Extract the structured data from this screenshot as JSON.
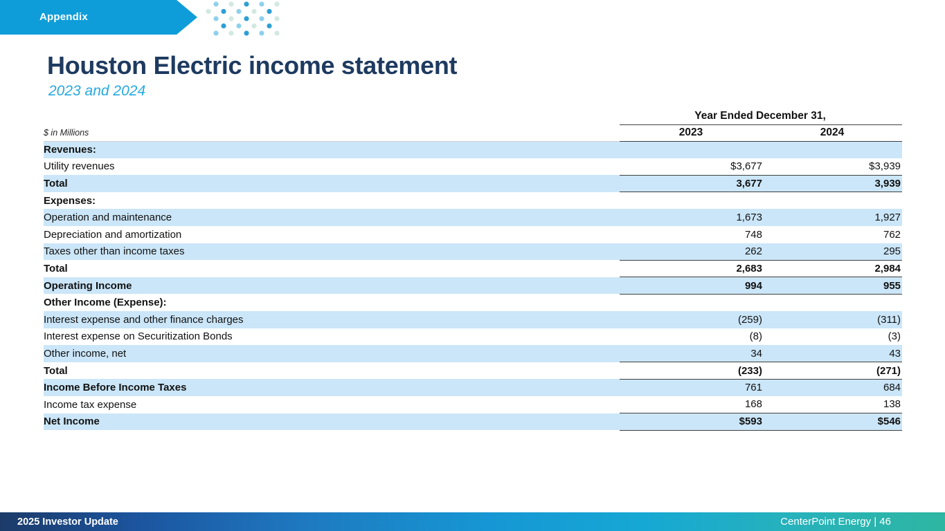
{
  "slide": {
    "tab_label": "Appendix",
    "title": "Houston Electric income statement",
    "subtitle": "2023 and 2024",
    "footer_left": "2025 Investor Update",
    "footer_right": "CenterPoint Energy | 46"
  },
  "table": {
    "units_label": "$ in Millions",
    "period_header": "Year Ended December 31,",
    "columns": [
      "2023",
      "2024"
    ],
    "rows": [
      {
        "label": "Revenues:",
        "v2023": "",
        "v2024": "",
        "label_bold": true,
        "value_bold": false,
        "indent": 0,
        "shaded": true,
        "line_below": false
      },
      {
        "label": "Utility revenues",
        "v2023": "$3,677",
        "v2024": "$3,939",
        "label_bold": false,
        "value_bold": false,
        "indent": 1,
        "shaded": false,
        "line_below": true
      },
      {
        "label": "Total",
        "v2023": "3,677",
        "v2024": "3,939",
        "label_bold": true,
        "value_bold": true,
        "indent": 2,
        "shaded": true,
        "line_below": true
      },
      {
        "label": "Expenses:",
        "v2023": "",
        "v2024": "",
        "label_bold": true,
        "value_bold": false,
        "indent": 0,
        "shaded": false,
        "line_below": false
      },
      {
        "label": "Operation and maintenance",
        "v2023": "1,673",
        "v2024": "1,927",
        "label_bold": false,
        "value_bold": false,
        "indent": 1,
        "shaded": true,
        "line_below": false
      },
      {
        "label": "Depreciation and amortization",
        "v2023": "748",
        "v2024": "762",
        "label_bold": false,
        "value_bold": false,
        "indent": 1,
        "shaded": false,
        "line_below": false
      },
      {
        "label": "Taxes other than income taxes",
        "v2023": "262",
        "v2024": "295",
        "label_bold": false,
        "value_bold": false,
        "indent": 1,
        "shaded": true,
        "line_below": true
      },
      {
        "label": "Total",
        "v2023": "2,683",
        "v2024": "2,984",
        "label_bold": true,
        "value_bold": true,
        "indent": 2,
        "shaded": false,
        "line_below": true
      },
      {
        "label": "Operating Income",
        "v2023": "994",
        "v2024": "955",
        "label_bold": true,
        "value_bold": true,
        "indent": 0,
        "shaded": true,
        "line_below": true
      },
      {
        "label": "Other Income (Expense):",
        "v2023": "",
        "v2024": "",
        "label_bold": true,
        "value_bold": false,
        "indent": 0,
        "shaded": false,
        "line_below": false
      },
      {
        "label": "Interest expense and other finance charges",
        "v2023": "(259)",
        "v2024": "(311)",
        "label_bold": false,
        "value_bold": false,
        "indent": 1,
        "shaded": true,
        "line_below": false
      },
      {
        "label": "Interest expense on Securitization Bonds",
        "v2023": "(8)",
        "v2024": "(3)",
        "label_bold": false,
        "value_bold": false,
        "indent": 1,
        "shaded": false,
        "line_below": false
      },
      {
        "label": "Other income, net",
        "v2023": "34",
        "v2024": "43",
        "label_bold": false,
        "value_bold": false,
        "indent": 1,
        "shaded": true,
        "line_below": true
      },
      {
        "label": "Total",
        "v2023": "(233)",
        "v2024": "(271)",
        "label_bold": true,
        "value_bold": true,
        "indent": 2,
        "shaded": false,
        "line_below": true
      },
      {
        "label": "Income Before Income Taxes",
        "v2023": "761",
        "v2024": "684",
        "label_bold": true,
        "value_bold": false,
        "indent": 0,
        "shaded": true,
        "line_below": false
      },
      {
        "label": "Income tax expense",
        "v2023": "168",
        "v2024": "138",
        "label_bold": false,
        "value_bold": false,
        "indent": 1,
        "shaded": false,
        "line_below": true
      },
      {
        "label": "Net Income",
        "v2023": "$593",
        "v2024": "$546",
        "label_bold": true,
        "value_bold": true,
        "indent": 0,
        "shaded": true,
        "line_below": true
      }
    ]
  },
  "colors": {
    "banner_blue": "#0e9dd9",
    "title_navy": "#1e3a60",
    "subtitle_blue": "#25a9e0",
    "row_shade_blue": "#cbe6f8",
    "rule_dark": "#3f3f3f",
    "footer_gradient_left": "#1c3b69",
    "footer_gradient_right": "#2eb6a2",
    "dot_palette": [
      "#2d9fd6",
      "#a9dbf2",
      "#d2e9e1",
      "#bfe0f2",
      "#8fd0ec",
      "#dcedf7"
    ]
  }
}
